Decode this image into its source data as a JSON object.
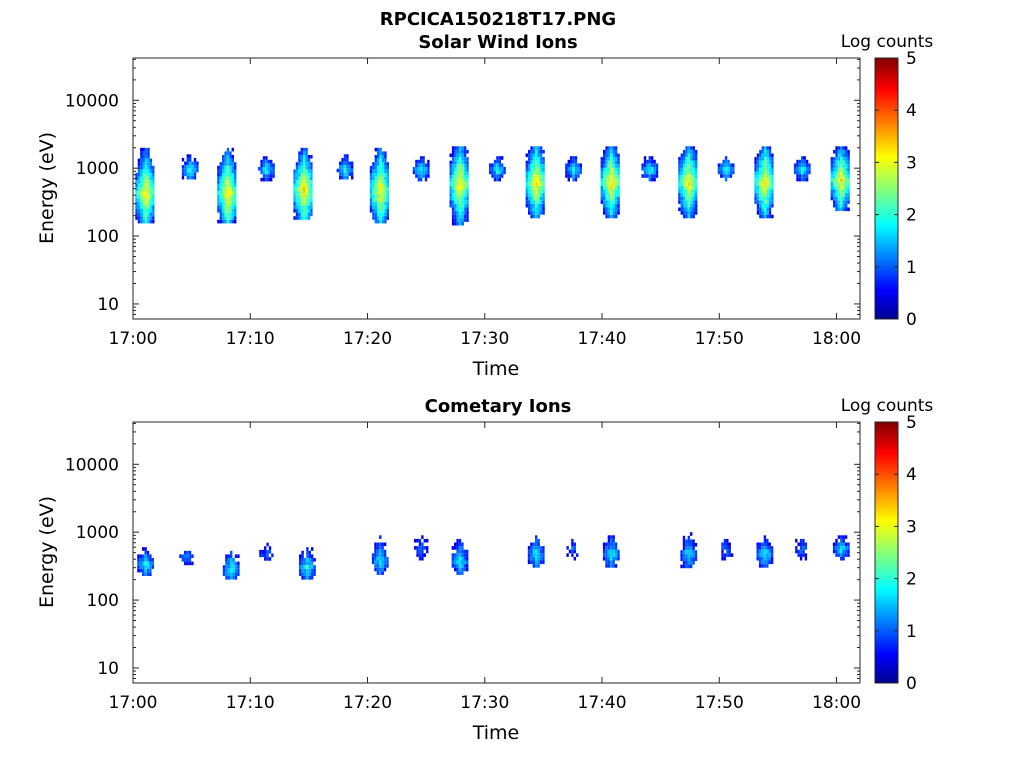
{
  "figure_title": "RPCICA150218T17.PNG",
  "chart_data": [
    {
      "type": "heatmap",
      "title": "Solar Wind Ions",
      "xlabel": "Time",
      "ylabel": "Energy (eV)",
      "x_ticks": [
        "17:00",
        "17:10",
        "17:20",
        "17:30",
        "17:40",
        "17:50",
        "18:00"
      ],
      "x_range": [
        "17:00",
        "18:02"
      ],
      "y_scale": "log",
      "y_ticks": [
        "10",
        "100",
        "1000",
        "10000"
      ],
      "y_range_eV": [
        6,
        42000
      ],
      "colorbar": {
        "label": "Log counts",
        "ticks": [
          "0",
          "1",
          "2",
          "3",
          "4",
          "5"
        ],
        "range": [
          0,
          5
        ],
        "colormap": "jet"
      },
      "clusters": [
        {
          "t_min": 1.0,
          "e_low_eV": 170,
          "e_high_eV": 2000,
          "peak_e_eV": 450,
          "peak_log_counts": 3.3
        },
        {
          "t_min": 4.8,
          "e_low_eV": 700,
          "e_high_eV": 1600,
          "peak_e_eV": 1000,
          "peak_log_counts": 2.0
        },
        {
          "t_min": 8.0,
          "e_low_eV": 170,
          "e_high_eV": 2000,
          "peak_e_eV": 450,
          "peak_log_counts": 3.4
        },
        {
          "t_min": 11.3,
          "e_low_eV": 700,
          "e_high_eV": 1500,
          "peak_e_eV": 1000,
          "peak_log_counts": 2.0
        },
        {
          "t_min": 14.5,
          "e_low_eV": 180,
          "e_high_eV": 2000,
          "peak_e_eV": 500,
          "peak_log_counts": 3.4
        },
        {
          "t_min": 18.0,
          "e_low_eV": 700,
          "e_high_eV": 1600,
          "peak_e_eV": 1000,
          "peak_log_counts": 2.0
        },
        {
          "t_min": 21.0,
          "e_low_eV": 170,
          "e_high_eV": 2000,
          "peak_e_eV": 500,
          "peak_log_counts": 3.3
        },
        {
          "t_min": 24.5,
          "e_low_eV": 700,
          "e_high_eV": 1500,
          "peak_e_eV": 1000,
          "peak_log_counts": 2.0
        },
        {
          "t_min": 27.8,
          "e_low_eV": 150,
          "e_high_eV": 2100,
          "peak_e_eV": 600,
          "peak_log_counts": 3.3
        },
        {
          "t_min": 31.0,
          "e_low_eV": 700,
          "e_high_eV": 1500,
          "peak_e_eV": 1000,
          "peak_log_counts": 2.0
        },
        {
          "t_min": 34.3,
          "e_low_eV": 200,
          "e_high_eV": 2100,
          "peak_e_eV": 650,
          "peak_log_counts": 3.4
        },
        {
          "t_min": 37.5,
          "e_low_eV": 700,
          "e_high_eV": 1500,
          "peak_e_eV": 1000,
          "peak_log_counts": 2.0
        },
        {
          "t_min": 40.7,
          "e_low_eV": 200,
          "e_high_eV": 2100,
          "peak_e_eV": 650,
          "peak_log_counts": 3.4
        },
        {
          "t_min": 44.0,
          "e_low_eV": 700,
          "e_high_eV": 1500,
          "peak_e_eV": 1000,
          "peak_log_counts": 2.0
        },
        {
          "t_min": 47.3,
          "e_low_eV": 200,
          "e_high_eV": 2100,
          "peak_e_eV": 650,
          "peak_log_counts": 3.3
        },
        {
          "t_min": 50.5,
          "e_low_eV": 700,
          "e_high_eV": 1500,
          "peak_e_eV": 1000,
          "peak_log_counts": 2.0
        },
        {
          "t_min": 53.8,
          "e_low_eV": 200,
          "e_high_eV": 2100,
          "peak_e_eV": 650,
          "peak_log_counts": 3.3
        },
        {
          "t_min": 57.0,
          "e_low_eV": 700,
          "e_high_eV": 1500,
          "peak_e_eV": 1000,
          "peak_log_counts": 2.0
        },
        {
          "t_min": 60.3,
          "e_low_eV": 250,
          "e_high_eV": 2100,
          "peak_e_eV": 700,
          "peak_log_counts": 3.3
        }
      ]
    },
    {
      "type": "heatmap",
      "title": "Cometary Ions",
      "xlabel": "Time",
      "ylabel": "Energy (eV)",
      "x_ticks": [
        "17:00",
        "17:10",
        "17:20",
        "17:30",
        "17:40",
        "17:50",
        "18:00"
      ],
      "x_range": [
        "17:00",
        "18:02"
      ],
      "y_scale": "log",
      "y_ticks": [
        "10",
        "100",
        "1000",
        "10000"
      ],
      "y_range_eV": [
        6,
        42000
      ],
      "colorbar": {
        "label": "Log counts",
        "ticks": [
          "0",
          "1",
          "2",
          "3",
          "4",
          "5"
        ],
        "range": [
          0,
          5
        ],
        "colormap": "jet"
      },
      "clusters": [
        {
          "t_min": 1.0,
          "e_low_eV": 250,
          "e_high_eV": 600,
          "peak_e_eV": 350,
          "peak_log_counts": 2.0
        },
        {
          "t_min": 4.5,
          "e_low_eV": 350,
          "e_high_eV": 600,
          "peak_e_eV": 450,
          "peak_log_counts": 1.4
        },
        {
          "t_min": 8.3,
          "e_low_eV": 200,
          "e_high_eV": 600,
          "peak_e_eV": 300,
          "peak_log_counts": 2.0
        },
        {
          "t_min": 11.3,
          "e_low_eV": 350,
          "e_high_eV": 700,
          "peak_e_eV": 500,
          "peak_log_counts": 1.2
        },
        {
          "t_min": 14.8,
          "e_low_eV": 200,
          "e_high_eV": 600,
          "peak_e_eV": 320,
          "peak_log_counts": 2.0
        },
        {
          "t_min": 21.0,
          "e_low_eV": 250,
          "e_high_eV": 900,
          "peak_e_eV": 400,
          "peak_log_counts": 1.9
        },
        {
          "t_min": 24.5,
          "e_low_eV": 400,
          "e_high_eV": 900,
          "peak_e_eV": 600,
          "peak_log_counts": 1.2
        },
        {
          "t_min": 27.8,
          "e_low_eV": 250,
          "e_high_eV": 900,
          "peak_e_eV": 400,
          "peak_log_counts": 1.9
        },
        {
          "t_min": 34.3,
          "e_low_eV": 300,
          "e_high_eV": 900,
          "peak_e_eV": 500,
          "peak_log_counts": 1.9
        },
        {
          "t_min": 37.5,
          "e_low_eV": 400,
          "e_high_eV": 900,
          "peak_e_eV": 600,
          "peak_log_counts": 1.2
        },
        {
          "t_min": 40.7,
          "e_low_eV": 300,
          "e_high_eV": 900,
          "peak_e_eV": 500,
          "peak_log_counts": 1.9
        },
        {
          "t_min": 47.3,
          "e_low_eV": 300,
          "e_high_eV": 1000,
          "peak_e_eV": 500,
          "peak_log_counts": 1.8
        },
        {
          "t_min": 50.5,
          "e_low_eV": 400,
          "e_high_eV": 900,
          "peak_e_eV": 600,
          "peak_log_counts": 1.2
        },
        {
          "t_min": 53.8,
          "e_low_eV": 300,
          "e_high_eV": 900,
          "peak_e_eV": 500,
          "peak_log_counts": 1.9
        },
        {
          "t_min": 57.0,
          "e_low_eV": 400,
          "e_high_eV": 900,
          "peak_e_eV": 600,
          "peak_log_counts": 1.2
        },
        {
          "t_min": 60.3,
          "e_low_eV": 400,
          "e_high_eV": 900,
          "peak_e_eV": 600,
          "peak_log_counts": 1.8
        }
      ]
    }
  ]
}
